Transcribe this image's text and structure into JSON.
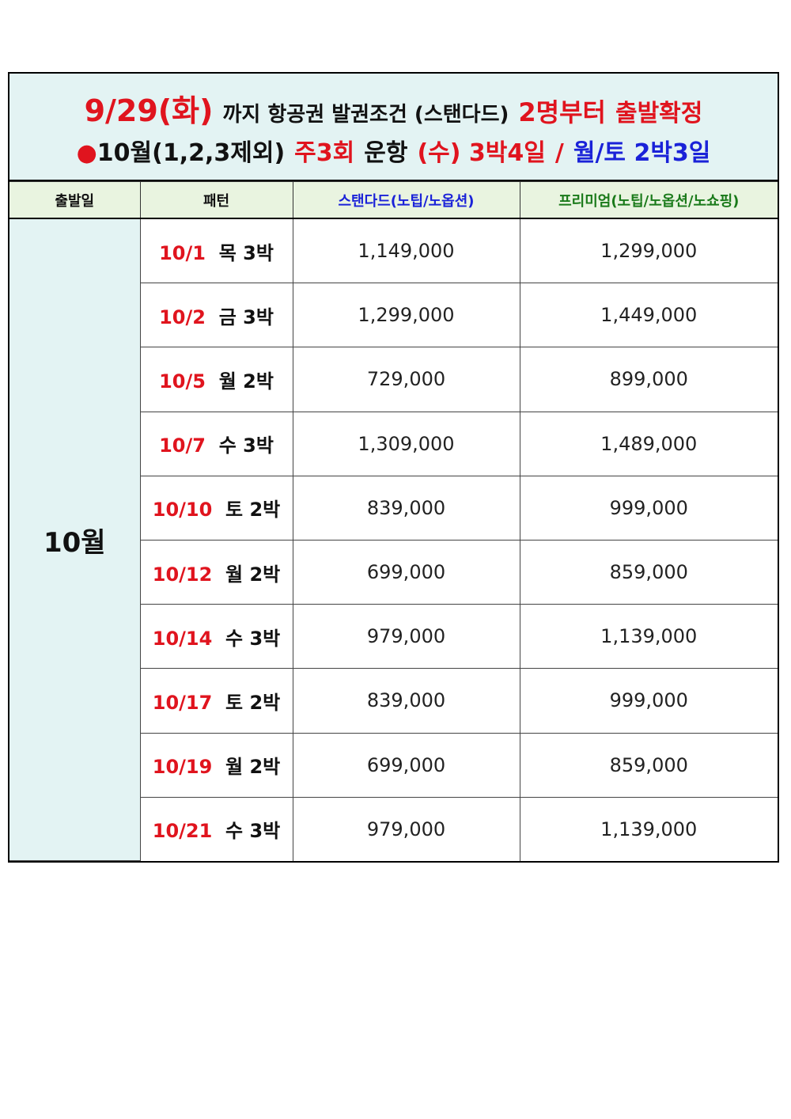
{
  "header": {
    "line1": [
      "9/29(화)",
      "까지 항공권 발권조건 (스탠다드)",
      "2명부터",
      "출발확정"
    ],
    "line2": [
      "●",
      "10월(1,2,3제외)",
      "주3회",
      "운항",
      "(수) 3박4일",
      "/",
      "월/토 2박3일"
    ]
  },
  "table": {
    "columns": [
      "출발일",
      "패턴",
      "스탠다드(노팁/노옵션)",
      "프리미엄(노팁/노옵션/노쇼핑)"
    ],
    "month": "10월",
    "rows": [
      [
        "10/1",
        "목 3박",
        "1,149,000",
        "1,299,000"
      ],
      [
        "10/2",
        "금 3박",
        "1,299,000",
        "1,449,000"
      ],
      [
        "10/5",
        "월 2박",
        "729,000",
        "899,000"
      ],
      [
        "10/7",
        "수 3박",
        "1,309,000",
        "1,489,000"
      ],
      [
        "10/10",
        "토 2박",
        "839,000",
        "999,000"
      ],
      [
        "10/12",
        "월 2박",
        "699,000",
        "859,000"
      ],
      [
        "10/14",
        "수 3박",
        "979,000",
        "1,139,000"
      ],
      [
        "10/17",
        "토 2박",
        "839,000",
        "999,000"
      ],
      [
        "10/19",
        "월 2박",
        "699,000",
        "859,000"
      ],
      [
        "10/21",
        "수 3박",
        "979,000",
        "1,139,000"
      ]
    ]
  }
}
